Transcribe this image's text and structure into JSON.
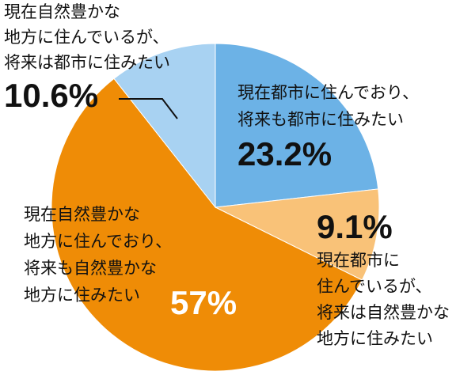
{
  "chart_data": {
    "type": "pie",
    "categories": [
      [
        "現在都市に住んでおり、",
        "将来も都市に住みたい"
      ],
      [
        "現在都市に",
        "住んでいるが、",
        "将来は自然豊かな",
        "地方に住みたい"
      ],
      [
        "現在自然豊かな",
        "地方に住んでおり、",
        "将来も自然豊かな",
        "地方に住みたい"
      ],
      [
        "現在自然豊かな",
        "地方に住んでいるが、",
        "将来は都市に住みたい"
      ]
    ],
    "values": [
      23.2,
      9.1,
      57,
      10.6
    ],
    "value_labels": [
      "23.2%",
      "9.1%",
      "57%",
      "10.6%"
    ],
    "colors": [
      "#6cb2e6",
      "#f9c278",
      "#ef8c06",
      "#a8d2f2"
    ]
  }
}
